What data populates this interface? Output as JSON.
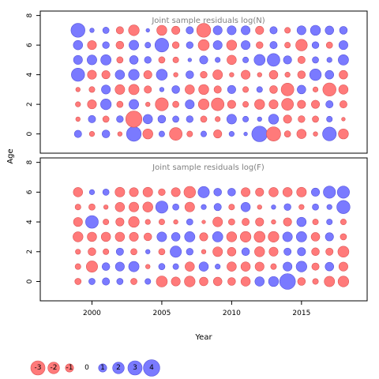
{
  "chart_data": {
    "type": "bubble-residuals",
    "xlabel": "Year",
    "ylabel": "Age",
    "years": [
      1999,
      2000,
      2001,
      2002,
      2003,
      2004,
      2005,
      2006,
      2007,
      2008,
      2009,
      2010,
      2011,
      2012,
      2013,
      2014,
      2015,
      2016,
      2017,
      2018
    ],
    "ages": [
      0,
      1,
      2,
      3,
      4,
      5,
      6,
      7
    ],
    "xlim": [
      1996.3,
      2019.7
    ],
    "ylim": [
      -1.3,
      8.3
    ],
    "x_ticks": [
      2000,
      2005,
      2010,
      2015
    ],
    "y_ticks": [
      0,
      2,
      4,
      6,
      8
    ],
    "colors": {
      "positive": "#7a7aff",
      "negative": "#ff7a7a",
      "edge_positive": "#5555dd",
      "edge_negative": "#dd5555"
    },
    "panels": [
      {
        "title": "Joint sample residuals log(N)",
        "residuals": [
          [
            0.8,
            -0.4,
            0.9,
            -0.3,
            3.2,
            -1.5,
            0.5,
            -2.4,
            -0.5,
            0.5,
            -1.0,
            0.4,
            0.2,
            3.6,
            -3.0,
            -0.6,
            -1.3,
            -0.3,
            2.8,
            -1.5
          ],
          [
            -0.3,
            0.8,
            -0.6,
            0.7,
            -3.9,
            1.3,
            0.9,
            0.6,
            0.7,
            -0.6,
            -0.4,
            1.4,
            0.5,
            0.3,
            1.5,
            -1.0,
            -0.7,
            -0.6,
            0.5,
            -0.2
          ],
          [
            -0.4,
            -1.2,
            1.7,
            -0.6,
            1.4,
            -0.3,
            -2.5,
            -0.6,
            1.2,
            -1.7,
            -2.4,
            -1.0,
            -0.5,
            -1.5,
            -1.2,
            -2.1,
            -1.0,
            -1.0,
            0.8,
            -0.8
          ],
          [
            -0.3,
            -0.5,
            1.2,
            -1.4,
            -1.6,
            -0.8,
            0.3,
            0.9,
            -1.3,
            -1.5,
            -0.8,
            1.0,
            -0.5,
            0.5,
            -0.9,
            -2.4,
            1.1,
            -0.4,
            -2.6,
            -1.3
          ],
          [
            2.6,
            -1.2,
            -1.0,
            1.3,
            1.7,
            -1.0,
            1.8,
            -0.3,
            0.9,
            -0.7,
            -1.4,
            -0.3,
            -1.2,
            -0.3,
            -1.1,
            -0.4,
            -0.9,
            2.0,
            1.1,
            -1.1
          ],
          [
            1.2,
            1.4,
            1.6,
            -0.6,
            1.1,
            0.7,
            -0.6,
            -0.5,
            0.2,
            1.0,
            0.4,
            -1.3,
            0.5,
            1.8,
            2.4,
            1.0,
            -0.8,
            0.6,
            0.4,
            1.6
          ],
          [
            1.3,
            -1.2,
            0.7,
            -0.9,
            1.4,
            0.5,
            2.8,
            -0.7,
            0.7,
            -1.8,
            1.2,
            -1.5,
            1.2,
            -0.7,
            0.8,
            -0.5,
            -2.0,
            0.7,
            -0.6,
            1.2
          ],
          [
            2.9,
            0.3,
            0.6,
            -0.8,
            -1.7,
            0.2,
            -1.5,
            -1.0,
            0.8,
            -2.9,
            1.2,
            1.2,
            1.2,
            -1.0,
            0.8,
            -0.5,
            1.2,
            1.5,
            1.1,
            0.9
          ]
        ]
      },
      {
        "title": "Joint sample residuals log(F)",
        "residuals": [
          [
            -0.6,
            0.6,
            0.8,
            0.6,
            -0.6,
            0.5,
            -1.8,
            -1.2,
            -1.7,
            -1.1,
            -1.1,
            -0.9,
            -1.3,
            1.3,
            1.5,
            3.7,
            -0.9,
            -0.5,
            -1.6,
            -1.7
          ],
          [
            -0.5,
            -1.9,
            0.9,
            1.2,
            1.6,
            -0.3,
            0.6,
            0.5,
            -1.3,
            1.3,
            0.4,
            -1.3,
            -1.3,
            -1.2,
            -0.5,
            1.2,
            1.7,
            -0.8,
            1.1,
            -1.2
          ],
          [
            -0.4,
            -0.9,
            -0.5,
            0.8,
            -0.6,
            0.3,
            -0.6,
            1.9,
            0.7,
            -0.3,
            -1.4,
            -1.1,
            0.9,
            -1.5,
            -1.2,
            0.8,
            1.0,
            -0.9,
            -0.8,
            -1.8
          ],
          [
            -1.5,
            -1.3,
            -1.3,
            -1.3,
            -1.2,
            -0.9,
            1.4,
            1.1,
            1.6,
            -1.0,
            1.6,
            -1.5,
            -1.7,
            -1.8,
            -1.7,
            1.4,
            1.6,
            -1.1,
            1.0,
            -0.6
          ],
          [
            -1.2,
            2.4,
            -0.5,
            -1.0,
            -1.7,
            -0.4,
            -0.5,
            -0.3,
            0.6,
            -0.2,
            -1.4,
            -0.6,
            -0.8,
            -1.0,
            -0.3,
            -1.0,
            1.3,
            -0.5,
            0.5,
            -0.5
          ],
          [
            -0.5,
            -0.6,
            -0.3,
            -1.3,
            -1.4,
            -1.5,
            2.2,
            0.6,
            -1.4,
            0.4,
            0.8,
            -0.5,
            1.3,
            -0.3,
            0.3,
            0.7,
            -0.4,
            0.6,
            0.4,
            2.6
          ],
          [
            -1.3,
            0.4,
            0.6,
            -1.4,
            -1.2,
            -1.4,
            -0.7,
            -1.2,
            -2.0,
            1.9,
            0.9,
            0.9,
            -1.2,
            -1.0,
            -1.3,
            -1.3,
            -1.4,
            1.0,
            2.2,
            2.2
          ],
          []
        ]
      }
    ],
    "legend": {
      "position": "bottom-left",
      "labels": [
        "-3",
        "-2",
        "-1",
        "0",
        "1",
        "2",
        "3",
        "4"
      ],
      "values": [
        -3,
        -2,
        -1,
        0,
        1,
        2,
        3,
        4
      ]
    }
  }
}
